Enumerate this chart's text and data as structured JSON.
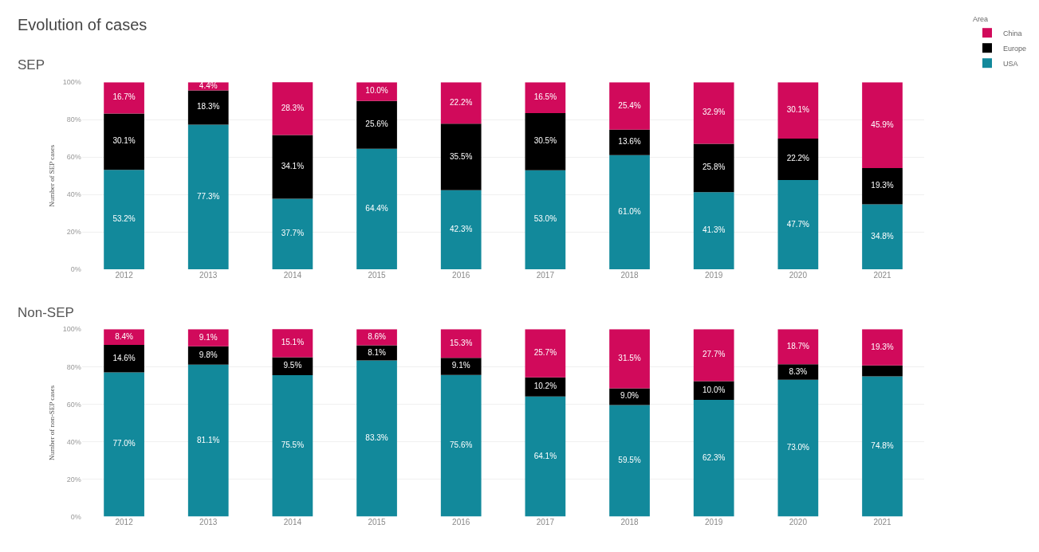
{
  "chart_data": [
    {
      "type": "bar",
      "title": "Evolution of cases",
      "subtitle": "SEP",
      "ylabel": "Number of SEP cases",
      "legend_title": "Area",
      "stacked": true,
      "categories": [
        "2012",
        "2013",
        "2014",
        "2015",
        "2016",
        "2017",
        "2018",
        "2019",
        "2020",
        "2021"
      ],
      "series": [
        {
          "name": "USA",
          "color": "#12899b",
          "values": [
            53.2,
            77.3,
            37.7,
            64.4,
            42.3,
            53.0,
            61.0,
            41.3,
            47.7,
            34.8
          ],
          "value_labels": [
            "53.2%",
            "77.3%",
            "37.7%",
            "64.4%",
            "42.3%",
            "53.0%",
            "61.0%",
            "41.3%",
            "47.7%",
            "34.8%"
          ]
        },
        {
          "name": "Europe",
          "color": "#000000",
          "values": [
            30.1,
            18.3,
            34.1,
            25.6,
            35.5,
            30.5,
            13.6,
            25.8,
            22.2,
            19.3
          ],
          "value_labels": [
            "30.1%",
            "18.3%",
            "34.1%",
            "25.6%",
            "35.5%",
            "30.5%",
            "13.6%",
            "25.8%",
            "22.2%",
            "19.3%"
          ]
        },
        {
          "name": "China",
          "color": "#d10a5b",
          "values": [
            16.7,
            4.4,
            28.3,
            10.0,
            22.2,
            16.5,
            25.4,
            32.9,
            30.1,
            45.9
          ],
          "value_labels": [
            "16.7%",
            "4.4%",
            "28.3%",
            "10.0%",
            "22.2%",
            "16.5%",
            "25.4%",
            "32.9%",
            "30.1%",
            "45.9%"
          ]
        }
      ],
      "ylim": [
        0,
        100
      ],
      "yticks": [
        {
          "value": 0,
          "label": "0%"
        },
        {
          "value": 20,
          "label": "20%"
        },
        {
          "value": 40,
          "label": "40%"
        },
        {
          "value": 60,
          "label": "60%"
        },
        {
          "value": 80,
          "label": "80%"
        },
        {
          "value": 100,
          "label": "100%"
        }
      ],
      "grid": "y",
      "legend": "top right"
    },
    {
      "type": "bar",
      "title": "Non-SEP",
      "ylabel": "Number of non-SEP cases",
      "stacked": true,
      "categories": [
        "2012",
        "2013",
        "2014",
        "2015",
        "2016",
        "2017",
        "2018",
        "2019",
        "2020",
        "2021"
      ],
      "series": [
        {
          "color": "#12899b",
          "values": [
            77.0,
            81.1,
            75.5,
            83.3,
            75.6,
            64.1,
            59.5,
            62.3,
            73.0,
            74.8
          ],
          "value_labels": [
            "77.0%",
            "81.1%",
            "75.5%",
            "83.3%",
            "75.6%",
            "64.1%",
            "59.5%",
            "62.3%",
            "73.0%",
            "74.8%"
          ]
        },
        {
          "color": "#000000",
          "values": [
            14.6,
            9.8,
            9.5,
            8.1,
            9.1,
            10.2,
            9.0,
            10.0,
            8.3,
            5.9
          ],
          "value_labels": [
            "14.6%",
            "9.8%",
            "9.5%",
            "8.1%",
            "9.1%",
            "10.2%",
            "9.0%",
            "10.0%",
            "8.3%",
            null
          ]
        },
        {
          "color": "#d10a5b",
          "values": [
            8.4,
            9.1,
            15.1,
            8.6,
            15.3,
            25.7,
            31.5,
            27.7,
            18.7,
            19.3
          ],
          "value_labels": [
            "8.4%",
            "9.1%",
            "15.1%",
            "8.6%",
            "15.3%",
            "25.7%",
            "31.5%",
            "27.7%",
            "18.7%",
            "19.3%"
          ]
        }
      ],
      "ylim": [
        0,
        100
      ],
      "yticks": [
        {
          "value": 0,
          "label": "0%"
        },
        {
          "value": 20,
          "label": "20%"
        },
        {
          "value": 40,
          "label": "40%"
        },
        {
          "value": 60,
          "label": "60%"
        },
        {
          "value": 80,
          "label": "80%"
        },
        {
          "value": 100,
          "label": "100%"
        }
      ],
      "grid": "y"
    }
  ]
}
